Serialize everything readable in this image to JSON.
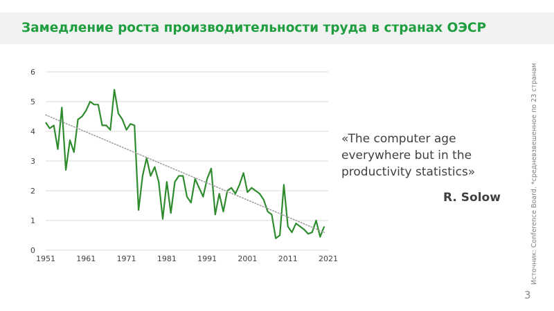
{
  "slide": {
    "title": "Замедление роста производительности труда в странах ОЭСР",
    "quote": "«The computer age everywhere but in the productivity statistics»",
    "quote_author": "R. Solow",
    "source": "Источник: Conference Board. *средневзвешенное по 23 странам",
    "page_number": "3"
  },
  "colors": {
    "title": "#1e9e3e",
    "series_line": "#2e8b2e",
    "trend_line": "#a0a0a0",
    "grid": "#d9d9d9"
  },
  "chart_data": {
    "type": "line",
    "title": "",
    "xlabel": "",
    "ylabel": "",
    "xlim": [
      1951,
      2021
    ],
    "ylim": [
      0,
      6
    ],
    "x_ticks": [
      1951,
      1961,
      1971,
      1981,
      1991,
      2001,
      2011,
      2021
    ],
    "y_ticks": [
      0,
      1,
      2,
      3,
      4,
      5,
      6
    ],
    "grid": true,
    "legend": "none",
    "series": [
      {
        "style": "solid",
        "x": [
          1951,
          1952,
          1953,
          1954,
          1955,
          1956,
          1957,
          1958,
          1959,
          1960,
          1961,
          1962,
          1963,
          1964,
          1965,
          1966,
          1967,
          1968,
          1969,
          1970,
          1971,
          1972,
          1973,
          1974,
          1975,
          1976,
          1977,
          1978,
          1979,
          1980,
          1981,
          1982,
          1983,
          1984,
          1985,
          1986,
          1987,
          1988,
          1989,
          1990,
          1991,
          1992,
          1993,
          1994,
          1995,
          1996,
          1997,
          1998,
          1999,
          2000,
          2001,
          2002,
          2003,
          2004,
          2005,
          2006,
          2007,
          2008,
          2009,
          2010,
          2011,
          2012,
          2013,
          2014,
          2015,
          2016,
          2017,
          2018,
          2019,
          2020
        ],
        "y": [
          4.3,
          4.1,
          4.2,
          3.4,
          4.8,
          2.7,
          3.7,
          3.3,
          4.4,
          4.5,
          4.7,
          5.0,
          4.9,
          4.9,
          4.2,
          4.2,
          4.05,
          5.4,
          4.6,
          4.4,
          4.05,
          4.25,
          4.2,
          1.35,
          2.5,
          3.1,
          2.5,
          2.8,
          2.3,
          1.05,
          2.3,
          1.25,
          2.3,
          2.5,
          2.5,
          1.8,
          1.6,
          2.4,
          2.1,
          1.8,
          2.4,
          2.75,
          1.2,
          1.9,
          1.3,
          2.0,
          2.1,
          1.9,
          2.2,
          2.6,
          1.95,
          2.1,
          2.0,
          1.9,
          1.7,
          1.3,
          1.2,
          0.4,
          0.5,
          2.2,
          0.8,
          0.6,
          0.9,
          0.8,
          0.7,
          0.55,
          0.6,
          1.0,
          0.45,
          0.8
        ]
      },
      {
        "style": "dotted",
        "x": [
          1951,
          2020
        ],
        "y": [
          4.55,
          0.6
        ]
      }
    ]
  }
}
